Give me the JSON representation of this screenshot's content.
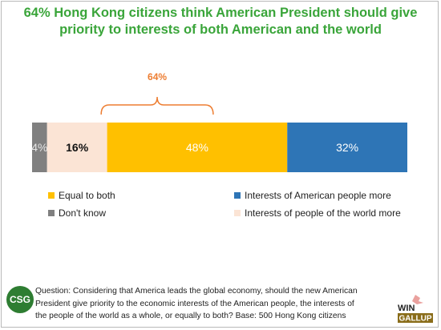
{
  "title": {
    "line1": "64% Hong Kong citizens think American President should give",
    "line2": "priority to interests of both American and the world"
  },
  "chart_data": {
    "type": "bar",
    "orientation": "horizontal-stacked",
    "categories": [
      ""
    ],
    "series": [
      {
        "name": "Don't know",
        "values": [
          4
        ],
        "label": "4%",
        "color": "#808080"
      },
      {
        "name": "Interests of people of the world more",
        "values": [
          16
        ],
        "label": "16%",
        "color": "#fbe4d5"
      },
      {
        "name": "Equal to both",
        "values": [
          48
        ],
        "label": "48%",
        "color": "#ffc000"
      },
      {
        "name": "Interests of American people more",
        "values": [
          32
        ],
        "label": "32%",
        "color": "#2e75b6"
      }
    ],
    "bracket": {
      "label": "64%",
      "spans": [
        "Interests of people of the world more",
        "Equal to both"
      ],
      "color": "#ed7d31"
    },
    "xlim": [
      0,
      100
    ],
    "legend": [
      {
        "label": "Equal to both",
        "color": "#ffc000"
      },
      {
        "label": "Interests of American people more",
        "color": "#2e75b6"
      },
      {
        "label": "Don't know",
        "color": "#808080"
      },
      {
        "label": "Interests of people of the world more",
        "color": "#fbe4d5"
      }
    ]
  },
  "footer": {
    "logo_text": "CSG",
    "question_line1": "Question: Considering that America leads the global economy, should the new American",
    "question_line2": "President give priority to the economic interests of the American people, the interests of",
    "question_line3": "the people of the world as a whole, or equally to both?  Base:  500 Hong Kong citizens",
    "win_text": "WIN",
    "gallup_text": "GALLUP"
  }
}
